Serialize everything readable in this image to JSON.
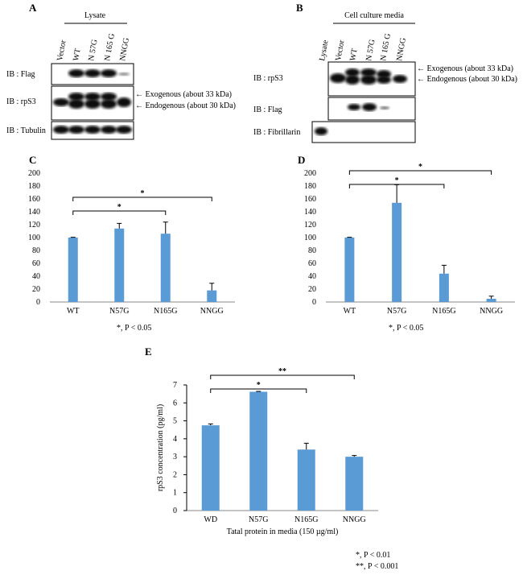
{
  "blots": {
    "A": {
      "label": "A",
      "header": "Lysate",
      "lanes": [
        "Vector",
        "WT",
        "N 57G",
        "N 165 G",
        "NNGG"
      ],
      "rows": [
        "IB : Flag",
        "IB : rpS3",
        "IB : Tubulin"
      ],
      "annotations": [
        "Exogenous (about 33 kDa)",
        "Endogenous (about 30 kDa)"
      ]
    },
    "B": {
      "label": "B",
      "header": "Cell  culture media",
      "lanes": [
        "Lysate",
        "Vector",
        "WT",
        "N 57G",
        "N 165 G",
        "NNGG"
      ],
      "rows": [
        "IB : rpS3",
        "IB : Flag",
        "IB : Fibrillarin"
      ],
      "annotations": [
        "Exogenous (about 33 kDa)",
        "Endogenous (about 30 kDa)"
      ]
    }
  },
  "chart_data": [
    {
      "type": "bar",
      "label": "C",
      "categories": [
        "WT",
        "N57G",
        "N165G",
        "NNGG"
      ],
      "values": [
        100,
        114,
        106,
        18
      ],
      "errors": [
        0.5,
        8,
        18,
        11
      ],
      "color": "#5b9bd5",
      "ylim": [
        0,
        200
      ],
      "yticks": [
        0,
        20,
        40,
        60,
        80,
        100,
        120,
        140,
        160,
        180,
        200
      ],
      "brackets": [
        {
          "label": "*",
          "from": 0,
          "to": 2
        },
        {
          "label": "*",
          "from": 0,
          "to": 3
        }
      ],
      "footnotes": [
        "*, P < 0.05"
      ]
    },
    {
      "type": "bar",
      "label": "D",
      "categories": [
        "WT",
        "N57G",
        "N165G",
        "NNGG"
      ],
      "values": [
        100,
        154,
        44,
        5
      ],
      "errors": [
        0.5,
        28,
        13,
        4
      ],
      "color": "#5b9bd5",
      "ylim": [
        0,
        200
      ],
      "yticks": [
        0,
        20,
        40,
        60,
        80,
        100,
        120,
        140,
        160,
        180,
        200
      ],
      "brackets": [
        {
          "label": "*",
          "from": 0,
          "to": 2
        },
        {
          "label": "*",
          "from": 0,
          "to": 3
        }
      ],
      "footnotes": [
        "*, P < 0.05"
      ]
    },
    {
      "type": "bar",
      "label": "E",
      "categories": [
        "WD",
        "N57G",
        "N165G",
        "NNGG"
      ],
      "values": [
        4.75,
        6.62,
        3.4,
        3.0
      ],
      "errors": [
        0.08,
        0.02,
        0.35,
        0.07
      ],
      "color": "#5b9bd5",
      "ylim": [
        0,
        7
      ],
      "yticks": [
        0,
        1,
        2,
        3,
        4,
        5,
        6,
        7
      ],
      "y_label": "rpS3 concentration (pg/ml)",
      "x_label": "Tatal protein in media (150 µg/ml)",
      "brackets": [
        {
          "label": "*",
          "from": 0,
          "to": 2
        },
        {
          "label": "**",
          "from": 0,
          "to": 3
        }
      ],
      "footnotes": [
        "*, P < 0.01",
        "**, P < 0.001"
      ]
    }
  ]
}
